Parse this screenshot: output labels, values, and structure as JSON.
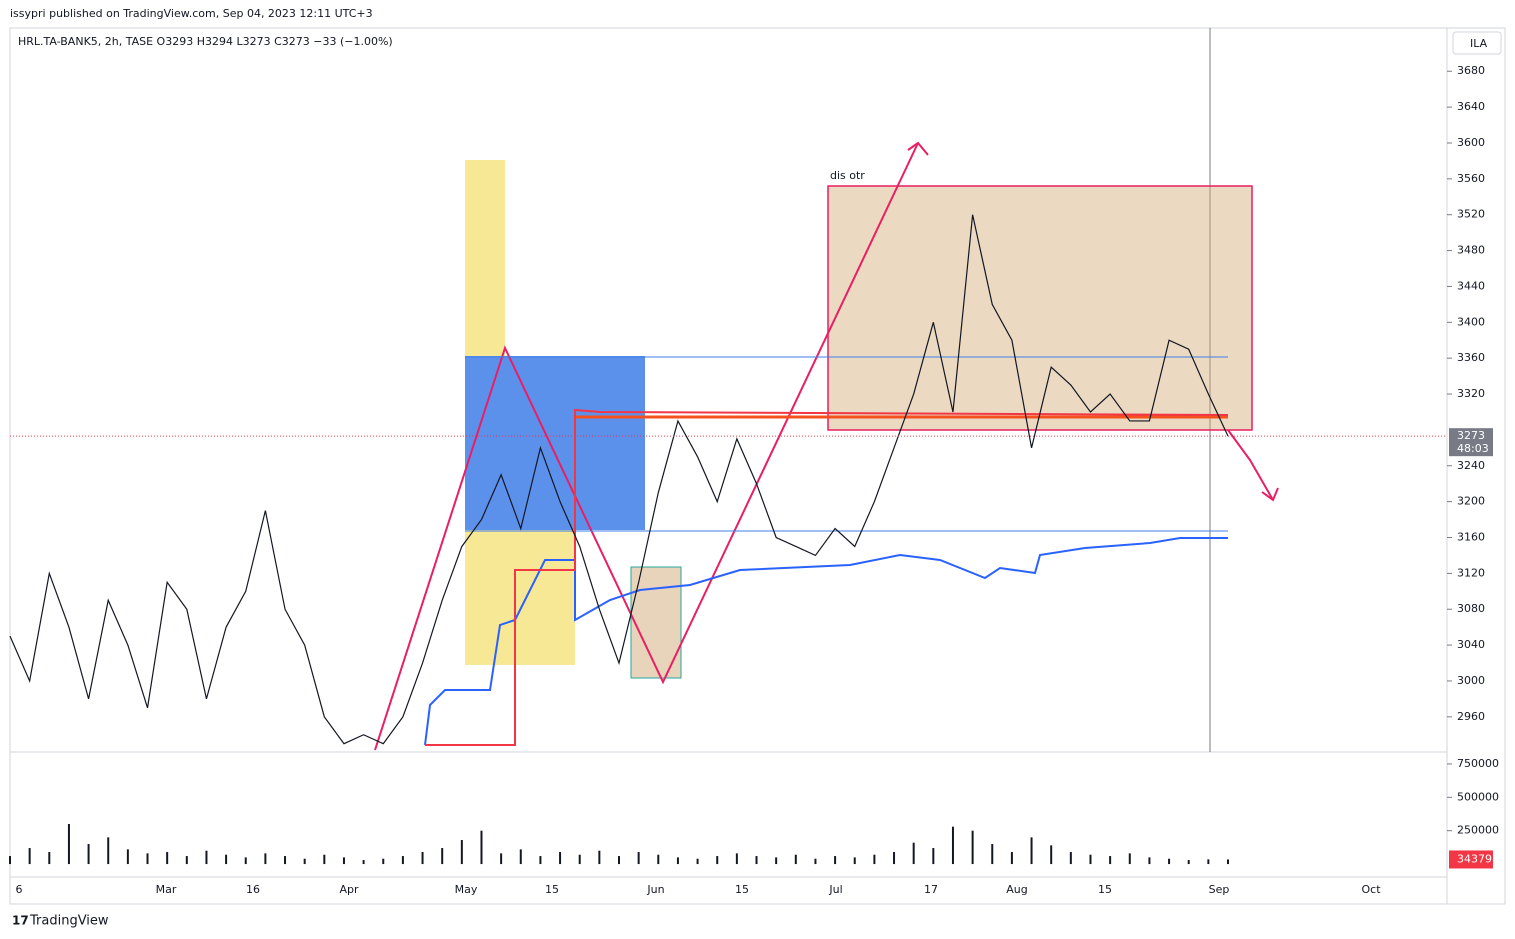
{
  "header": {
    "publisher": "issypri published on TradingView.com, Sep 04, 2023 12:11 UTC+3",
    "brand": "TradingView"
  },
  "chart_data": {
    "type": "line",
    "symbol_line": "HRL.TA-BANK5, 2h, TASE  O3293  H3294  L3273  C3273  −33 (−1.00%)",
    "currency": "ILA",
    "annotation": "dis otr",
    "x_labels": [
      "6",
      "Mar",
      "16",
      "Apr",
      "May",
      "15",
      "Jun",
      "15",
      "Jul",
      "17",
      "Aug",
      "15",
      "Sep",
      "Oct"
    ],
    "series": [
      {
        "name": "HRL.TA-BANK5",
        "color": "#131722",
        "values": [
          3050,
          3000,
          3120,
          3060,
          2980,
          3090,
          3040,
          2970,
          3110,
          3080,
          2980,
          3060,
          3100,
          3190,
          3080,
          3040,
          2960,
          2930,
          2940,
          2930,
          2960,
          3020,
          3090,
          3150,
          3180,
          3230,
          3170,
          3260,
          3200,
          3150,
          3080,
          3020,
          3110,
          3210,
          3290,
          3250,
          3200,
          3270,
          3220,
          3160,
          3150,
          3140,
          3170,
          3150,
          3200,
          3260,
          3320,
          3400,
          3300,
          3520,
          3420,
          3380,
          3260,
          3350,
          3330,
          3300,
          3320,
          3290,
          3290,
          3380,
          3370,
          3320,
          3273
        ]
      }
    ],
    "ylim": [
      2923,
      3726
    ],
    "yticks": [
      2960,
      3000,
      3040,
      3080,
      3120,
      3160,
      3200,
      3240,
      3320,
      3360,
      3400,
      3440,
      3480,
      3520,
      3560,
      3600,
      3640,
      3680
    ],
    "last_price": 3273,
    "countdown": "48:03",
    "volume": {
      "values": [
        60000,
        120000,
        90000,
        300000,
        150000,
        200000,
        110000,
        80000,
        90000,
        60000,
        100000,
        70000,
        50000,
        80000,
        60000,
        40000,
        70000,
        50000,
        30000,
        40000,
        60000,
        90000,
        120000,
        180000,
        250000,
        80000,
        110000,
        60000,
        90000,
        70000,
        100000,
        60000,
        90000,
        70000,
        50000,
        40000,
        60000,
        80000,
        60000,
        50000,
        70000,
        40000,
        60000,
        50000,
        70000,
        90000,
        160000,
        120000,
        280000,
        250000,
        150000,
        90000,
        200000,
        140000,
        90000,
        70000,
        60000,
        80000,
        50000,
        40000,
        30000,
        35000,
        34379
      ],
      "ylim": [
        -82000,
        817000
      ],
      "yticks": [
        250000,
        500000,
        750000
      ],
      "last_label": "34379"
    }
  }
}
